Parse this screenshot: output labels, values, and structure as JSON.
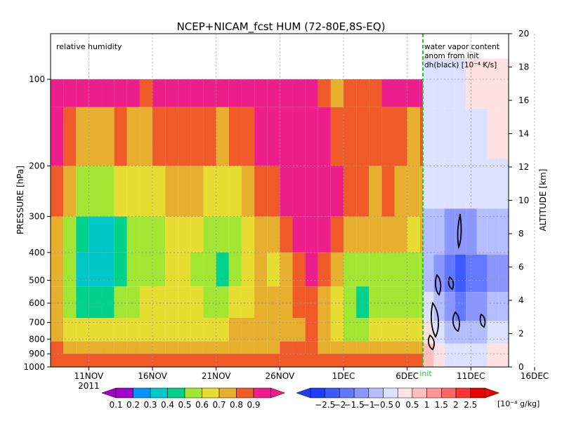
{
  "chart_data": {
    "type": "heatmap",
    "title": "NCEP+NICAM_fcst HUM (72-80E,8S-EQ)",
    "left_panel_label": "relative humidity",
    "right_panel_label": [
      "water vapor content",
      "anom from init",
      "dh(black) [10⁻⁴ K/s]"
    ],
    "init_label": "init",
    "ylabel_left": "PRESSURE [hPa]",
    "ylabel_right": "ALTITUDE [km]",
    "year_label": "2011",
    "x_ticks": [
      "11NOV",
      "16NOV",
      "21NOV",
      "26NOV",
      "1DEC",
      "6DEC",
      "11DEC",
      "16DEC"
    ],
    "pressure_ticks": [
      100,
      200,
      300,
      400,
      500,
      600,
      700,
      800,
      900,
      1000
    ],
    "altitude_ticks": [
      0,
      2,
      4,
      6,
      8,
      10,
      12,
      14,
      16,
      18,
      20
    ],
    "rh_colorbar": {
      "labels": [
        "0.1",
        "0.2",
        "0.3",
        "0.4",
        "0.5",
        "0.6",
        "0.7",
        "0.8",
        "0.9"
      ],
      "colors": [
        "#a000c8",
        "#0096ff",
        "#00c8c8",
        "#00d28c",
        "#a0e632",
        "#e6dc32",
        "#e6af2d",
        "#f05a28",
        "#eb1e8c"
      ]
    },
    "anom_colorbar": {
      "labels": [
        "−2.5",
        "−2",
        "−1.5",
        "−1",
        "−0.5",
        "0",
        "0.5",
        "1",
        "1.5",
        "2",
        "2.5"
      ],
      "unit": "[10⁻⁴ g/kg]",
      "colors": [
        "#1e3cff",
        "#3c5aff",
        "#6478ff",
        "#8c96ff",
        "#b4beff",
        "#dce1ff",
        "#ffe1e1",
        "#ffbebe",
        "#ff9696",
        "#ff6464",
        "#ff3232",
        "#e60000"
      ]
    },
    "rh_profiles": [
      {
        "date": "8NOV",
        "values": [
          0.9,
          0.9,
          0.85,
          0.75,
          0.7,
          0.7,
          0.75,
          0.8,
          0.85
        ]
      },
      {
        "date": "9NOV",
        "values": [
          0.9,
          0.8,
          0.7,
          0.55,
          0.5,
          0.55,
          0.65,
          0.75,
          0.85
        ]
      },
      {
        "date": "10NOV",
        "values": [
          0.9,
          0.7,
          0.55,
          0.4,
          0.35,
          0.45,
          0.6,
          0.7,
          0.85
        ]
      },
      {
        "date": "11NOV",
        "values": [
          0.9,
          0.7,
          0.5,
          0.3,
          0.3,
          0.45,
          0.6,
          0.7,
          0.85
        ]
      },
      {
        "date": "12NOV",
        "values": [
          0.9,
          0.75,
          0.55,
          0.35,
          0.35,
          0.45,
          0.6,
          0.7,
          0.85
        ]
      },
      {
        "date": "13NOV",
        "values": [
          0.9,
          0.8,
          0.6,
          0.45,
          0.4,
          0.5,
          0.6,
          0.7,
          0.85
        ]
      },
      {
        "date": "14NOV",
        "values": [
          0.9,
          0.75,
          0.6,
          0.5,
          0.5,
          0.55,
          0.65,
          0.75,
          0.85
        ]
      },
      {
        "date": "15NOV",
        "values": [
          0.85,
          0.75,
          0.6,
          0.55,
          0.55,
          0.6,
          0.65,
          0.75,
          0.85
        ]
      },
      {
        "date": "16NOV",
        "values": [
          0.9,
          0.8,
          0.65,
          0.55,
          0.55,
          0.6,
          0.65,
          0.75,
          0.85
        ]
      },
      {
        "date": "17NOV",
        "values": [
          0.9,
          0.85,
          0.7,
          0.6,
          0.6,
          0.6,
          0.65,
          0.75,
          0.85
        ]
      },
      {
        "date": "18NOV",
        "values": [
          0.9,
          0.85,
          0.75,
          0.65,
          0.6,
          0.6,
          0.65,
          0.75,
          0.85
        ]
      },
      {
        "date": "19NOV",
        "values": [
          0.9,
          0.8,
          0.7,
          0.6,
          0.55,
          0.6,
          0.65,
          0.75,
          0.85
        ]
      },
      {
        "date": "20NOV",
        "values": [
          0.9,
          0.8,
          0.65,
          0.55,
          0.5,
          0.55,
          0.65,
          0.75,
          0.85
        ]
      },
      {
        "date": "21NOV",
        "values": [
          0.9,
          0.75,
          0.6,
          0.5,
          0.45,
          0.55,
          0.65,
          0.75,
          0.85
        ]
      },
      {
        "date": "22NOV",
        "values": [
          0.9,
          0.8,
          0.65,
          0.55,
          0.55,
          0.6,
          0.7,
          0.75,
          0.85
        ]
      },
      {
        "date": "23NOV",
        "values": [
          0.9,
          0.85,
          0.7,
          0.65,
          0.6,
          0.65,
          0.7,
          0.75,
          0.85
        ]
      },
      {
        "date": "24NOV",
        "values": [
          0.9,
          0.9,
          0.85,
          0.75,
          0.7,
          0.7,
          0.7,
          0.75,
          0.85
        ]
      },
      {
        "date": "25NOV",
        "values": [
          0.9,
          0.9,
          0.8,
          0.7,
          0.65,
          0.7,
          0.7,
          0.75,
          0.85
        ]
      },
      {
        "date": "26NOV",
        "values": [
          0.9,
          0.9,
          0.9,
          0.8,
          0.75,
          0.75,
          0.75,
          0.8,
          0.85
        ]
      },
      {
        "date": "27NOV",
        "values": [
          0.9,
          0.9,
          0.9,
          0.9,
          0.85,
          0.8,
          0.75,
          0.8,
          0.85
        ]
      },
      {
        "date": "28NOV",
        "values": [
          0.9,
          0.9,
          0.9,
          0.9,
          0.9,
          0.85,
          0.8,
          0.8,
          0.85
        ]
      },
      {
        "date": "29NOV",
        "values": [
          0.8,
          0.9,
          0.9,
          0.9,
          0.85,
          0.75,
          0.7,
          0.75,
          0.85
        ]
      },
      {
        "date": "30NOV",
        "values": [
          0.75,
          0.85,
          0.9,
          0.85,
          0.7,
          0.6,
          0.6,
          0.7,
          0.85
        ]
      },
      {
        "date": "1DEC",
        "values": [
          0.8,
          0.8,
          0.85,
          0.75,
          0.55,
          0.5,
          0.55,
          0.7,
          0.85
        ]
      },
      {
        "date": "2DEC",
        "values": [
          0.85,
          0.8,
          0.8,
          0.7,
          0.5,
          0.45,
          0.55,
          0.7,
          0.85
        ]
      },
      {
        "date": "3DEC",
        "values": [
          0.85,
          0.8,
          0.75,
          0.7,
          0.55,
          0.5,
          0.6,
          0.7,
          0.85
        ]
      },
      {
        "date": "4DEC",
        "values": [
          0.9,
          0.85,
          0.8,
          0.7,
          0.5,
          0.5,
          0.6,
          0.7,
          0.85
        ]
      },
      {
        "date": "5DEC",
        "values": [
          0.9,
          0.8,
          0.75,
          0.7,
          0.55,
          0.55,
          0.6,
          0.7,
          0.85
        ]
      },
      {
        "date": "6DEC",
        "values": [
          0.9,
          0.75,
          0.7,
          0.65,
          0.5,
          0.5,
          0.6,
          0.7,
          0.85
        ]
      },
      {
        "date": "7DEC",
        "values": [
          0.9,
          0.8,
          0.75,
          0.7,
          0.55,
          0.55,
          0.6,
          0.7,
          0.85
        ]
      },
      {
        "date": "8DEC",
        "values": [
          0.9,
          0.85,
          0.8,
          0.75,
          0.65,
          0.6,
          0.65,
          0.75,
          0.85
        ]
      }
    ],
    "anom_profiles": [
      {
        "date": "9DEC",
        "values": [
          0,
          -0.5,
          -0.5,
          -0.5,
          -1,
          -1,
          -0.5,
          0,
          0.5
        ]
      },
      {
        "date": "10DEC",
        "values": [
          0,
          -0.5,
          -0.5,
          -0.5,
          -1,
          -1.5,
          -1,
          -0.5,
          0
        ]
      },
      {
        "date": "11DEC",
        "values": [
          0,
          -0.5,
          -0.5,
          -0.5,
          -1.5,
          -2,
          -1.5,
          -1,
          -0.5
        ]
      },
      {
        "date": "12DEC",
        "values": [
          0,
          -0.5,
          -0.5,
          -0.5,
          -1.5,
          -2.5,
          -2,
          -1,
          -0.5
        ]
      },
      {
        "date": "13DEC",
        "values": [
          0,
          0,
          -0.5,
          -0.5,
          -1.5,
          -2,
          -1.5,
          -1,
          -0.5
        ]
      },
      {
        "date": "14DEC",
        "values": [
          0,
          0,
          -0.5,
          -0.5,
          -1,
          -2,
          -1.5,
          -1,
          -0.5
        ]
      },
      {
        "date": "15DEC",
        "values": [
          0,
          0,
          0,
          -0.5,
          -1,
          -1.5,
          -1,
          -0.5,
          0
        ]
      },
      {
        "date": "16DEC",
        "values": [
          0,
          0,
          0,
          -0.5,
          -1,
          -1.5,
          -1,
          -0.5,
          0
        ]
      }
    ]
  }
}
